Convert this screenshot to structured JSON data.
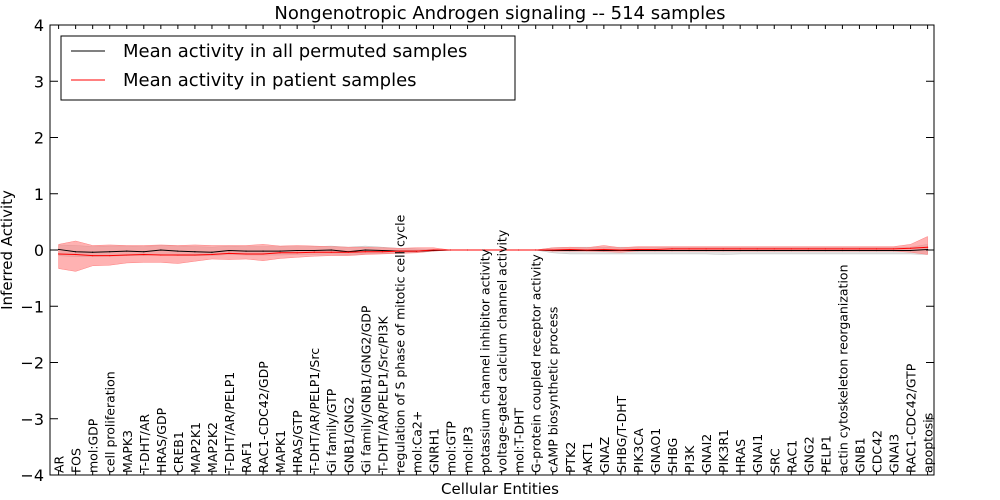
{
  "chart_data": {
    "type": "line",
    "title": "Nongenotropic Androgen signaling -- 514 samples",
    "xlabel": "Cellular Entities",
    "ylabel": "Inferred Activity",
    "ylim": [
      -4,
      4
    ],
    "yticks": [
      -4,
      -3,
      -2,
      -1,
      0,
      1,
      2,
      3,
      4
    ],
    "ytick_labels": [
      "−4",
      "−3",
      "−2",
      "−1",
      "0",
      "1",
      "2",
      "3",
      "4"
    ],
    "legend": {
      "position": "top-left",
      "entries": [
        {
          "label": "Mean activity in all permuted samples",
          "color": "#000000"
        },
        {
          "label": "Mean activity in patient samples",
          "color": "#ff0000"
        }
      ]
    },
    "colors": {
      "permuted_line": "#000000",
      "permuted_band": "#bfbfbf",
      "patient_line": "#ff0000",
      "patient_band": "#ff7f7f"
    },
    "categories": [
      "AR",
      "FOS",
      "mol:GDP",
      "cell proliferation",
      "MAPK3",
      "T-DHT/AR",
      "HRAS/GDP",
      "CREB1",
      "MAP2K1",
      "MAP2K2",
      "T-DHT/AR/PELP1",
      "RAF1",
      "RAC1-CDC42/GDP",
      "MAPK1",
      "HRAS/GTP",
      "T-DHT/AR/PELP1/Src",
      "Gi family/GTP",
      "GNB1/GNG2",
      "Gi family/GNB1/GNG2/GDP",
      "T-DHT/AR/PELP1/Src/PI3K",
      "regulation of S phase of mitotic cell cycle",
      "mol:Ca2+",
      "GNRH1",
      "mol:GTP",
      "mol:IP3",
      "potassium channel inhibitor activity",
      "voltage-gated calcium channel activity",
      "mol:T-DHT",
      "G-protein coupled receptor activity",
      "cAMP biosynthetic process",
      "PTK2",
      "AKT1",
      "GNAZ",
      "SHBG/T-DHT",
      "PIK3CA",
      "GNAO1",
      "SHBG",
      "PI3K",
      "GNAI2",
      "PIK3R1",
      "HRAS",
      "GNAI1",
      "SRC",
      "RAC1",
      "GNG2",
      "PELP1",
      "actin cytoskeleton reorganization",
      "GNB1",
      "CDC42",
      "GNAI3",
      "RAC1-CDC42/GTP",
      "apoptosis"
    ],
    "series": [
      {
        "name": "Mean activity in all permuted samples",
        "values": [
          0.01,
          -0.03,
          -0.04,
          -0.03,
          -0.02,
          -0.03,
          0.0,
          -0.02,
          -0.03,
          -0.04,
          -0.01,
          -0.02,
          -0.02,
          -0.02,
          -0.01,
          -0.01,
          0.0,
          -0.03,
          0.0,
          -0.01,
          -0.02,
          -0.02,
          -0.01,
          0.0,
          0.0,
          0.0,
          0.0,
          0.0,
          0.0,
          -0.01,
          -0.01,
          -0.01,
          -0.01,
          -0.01,
          -0.01,
          -0.01,
          -0.01,
          -0.01,
          -0.01,
          -0.01,
          -0.01,
          -0.01,
          -0.01,
          -0.01,
          -0.01,
          -0.01,
          -0.01,
          -0.01,
          -0.01,
          -0.01,
          -0.01,
          0.01
        ],
        "lower": [
          -0.1,
          -0.12,
          -0.12,
          -0.11,
          -0.1,
          -0.1,
          -0.08,
          -0.1,
          -0.1,
          -0.1,
          -0.08,
          -0.09,
          -0.09,
          -0.09,
          -0.08,
          -0.08,
          -0.07,
          -0.08,
          -0.07,
          -0.06,
          -0.05,
          -0.04,
          -0.02,
          0.0,
          0.0,
          0.0,
          0.0,
          0.0,
          0.0,
          -0.05,
          -0.07,
          -0.07,
          -0.07,
          -0.07,
          -0.07,
          -0.07,
          -0.07,
          -0.07,
          -0.07,
          -0.08,
          -0.07,
          -0.07,
          -0.07,
          -0.07,
          -0.07,
          -0.07,
          -0.07,
          -0.07,
          -0.07,
          -0.07,
          -0.07,
          -0.08
        ],
        "upper": [
          0.09,
          0.08,
          0.06,
          0.07,
          0.07,
          0.06,
          0.08,
          0.07,
          0.06,
          0.05,
          0.07,
          0.06,
          0.06,
          0.06,
          0.06,
          0.06,
          0.07,
          0.05,
          0.07,
          0.05,
          0.03,
          0.02,
          0.01,
          0.0,
          0.0,
          0.0,
          0.0,
          0.0,
          0.0,
          0.04,
          0.05,
          0.05,
          0.05,
          0.05,
          0.05,
          0.05,
          0.05,
          0.05,
          0.05,
          0.05,
          0.05,
          0.05,
          0.05,
          0.05,
          0.05,
          0.05,
          0.05,
          0.05,
          0.05,
          0.05,
          0.05,
          0.1
        ]
      },
      {
        "name": "Mean activity in patient samples",
        "values": [
          -0.07,
          -0.08,
          -0.1,
          -0.1,
          -0.09,
          -0.08,
          -0.09,
          -0.09,
          -0.09,
          -0.08,
          -0.06,
          -0.07,
          -0.07,
          -0.05,
          -0.05,
          -0.04,
          -0.04,
          -0.04,
          -0.03,
          -0.03,
          -0.02,
          -0.02,
          0.0,
          0.0,
          0.0,
          0.0,
          0.0,
          0.0,
          0.0,
          0.0,
          0.01,
          0.0,
          0.01,
          0.0,
          0.01,
          0.01,
          0.02,
          0.02,
          0.02,
          0.02,
          0.02,
          0.02,
          0.02,
          0.02,
          0.02,
          0.02,
          0.02,
          0.02,
          0.02,
          0.02,
          0.03,
          0.05
        ],
        "lower": [
          -0.33,
          -0.38,
          -0.28,
          -0.27,
          -0.23,
          -0.22,
          -0.22,
          -0.24,
          -0.2,
          -0.16,
          -0.17,
          -0.16,
          -0.19,
          -0.15,
          -0.13,
          -0.11,
          -0.1,
          -0.1,
          -0.08,
          -0.07,
          -0.06,
          -0.05,
          -0.02,
          0.0,
          0.0,
          0.0,
          0.0,
          0.0,
          0.0,
          -0.02,
          -0.02,
          -0.02,
          -0.03,
          -0.04,
          -0.02,
          -0.02,
          -0.02,
          -0.02,
          -0.02,
          -0.02,
          -0.02,
          -0.02,
          -0.02,
          -0.02,
          -0.02,
          -0.02,
          -0.02,
          -0.02,
          -0.02,
          -0.02,
          -0.04,
          -0.08
        ],
        "upper": [
          0.1,
          0.16,
          0.08,
          0.09,
          0.08,
          0.08,
          0.09,
          0.08,
          0.09,
          0.08,
          0.08,
          0.08,
          0.1,
          0.07,
          0.08,
          0.07,
          0.06,
          0.05,
          0.05,
          0.04,
          0.03,
          0.04,
          0.04,
          0.0,
          0.0,
          0.0,
          0.0,
          0.0,
          0.0,
          0.04,
          0.05,
          0.04,
          0.08,
          0.04,
          0.06,
          0.06,
          0.06,
          0.06,
          0.06,
          0.06,
          0.06,
          0.06,
          0.06,
          0.06,
          0.06,
          0.06,
          0.06,
          0.06,
          0.06,
          0.06,
          0.1,
          0.24
        ]
      }
    ]
  }
}
